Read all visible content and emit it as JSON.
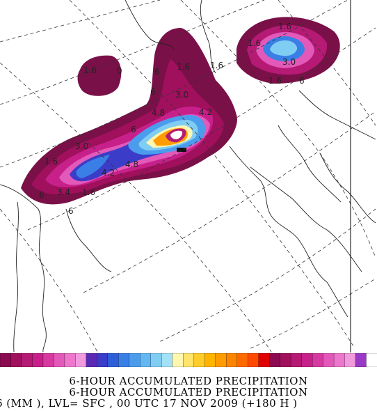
{
  "title_lines": [
    "6-HOUR ACCUMULATED PRECIPITATION",
    "6-HOUR ACCUMULATED PRECIPITATION"
  ],
  "footer": "6 (MM  ),  LVL= SFC , 00 UTC 17 NOV 2009 (+180 H )",
  "colors": {
    "palette": [
      "#8b0a50",
      "#a0105c",
      "#b51a74",
      "#c8208a",
      "#d63aa0",
      "#e259b9",
      "#ec77cc",
      "#f29ade",
      "#5a2ab4",
      "#3b3cc8",
      "#2f5fd8",
      "#3a7fe6",
      "#4c9cee",
      "#63b7f2",
      "#80cdf4",
      "#a3e2f6",
      "#fff6b0",
      "#ffe36a",
      "#ffcc2a",
      "#ffb400",
      "#ff9c00",
      "#ff8400",
      "#ff6a00",
      "#ff4a00",
      "#e00000",
      "#8b0a50",
      "#a0105c",
      "#b51a74",
      "#c8208a",
      "#d63aa0",
      "#e259b9",
      "#ec77cc",
      "#f29ade",
      "#9b39c7",
      "#ffffff"
    ],
    "low": "#7a1048",
    "mid": "#d02a96",
    "blue": "#3560d0",
    "orange": "#ff9a10"
  },
  "contour_labels": [
    "1.6",
    "1.6",
    "6",
    "0",
    "6",
    "1.6",
    "3.0",
    "4.8",
    "6",
    "4.2",
    "3.0",
    "1.6",
    "4.2",
    "4.8",
    "3.4",
    "1.6",
    "6",
    "6",
    "1.6",
    "1.6",
    "3.0",
    "1.6",
    "6"
  ]
}
